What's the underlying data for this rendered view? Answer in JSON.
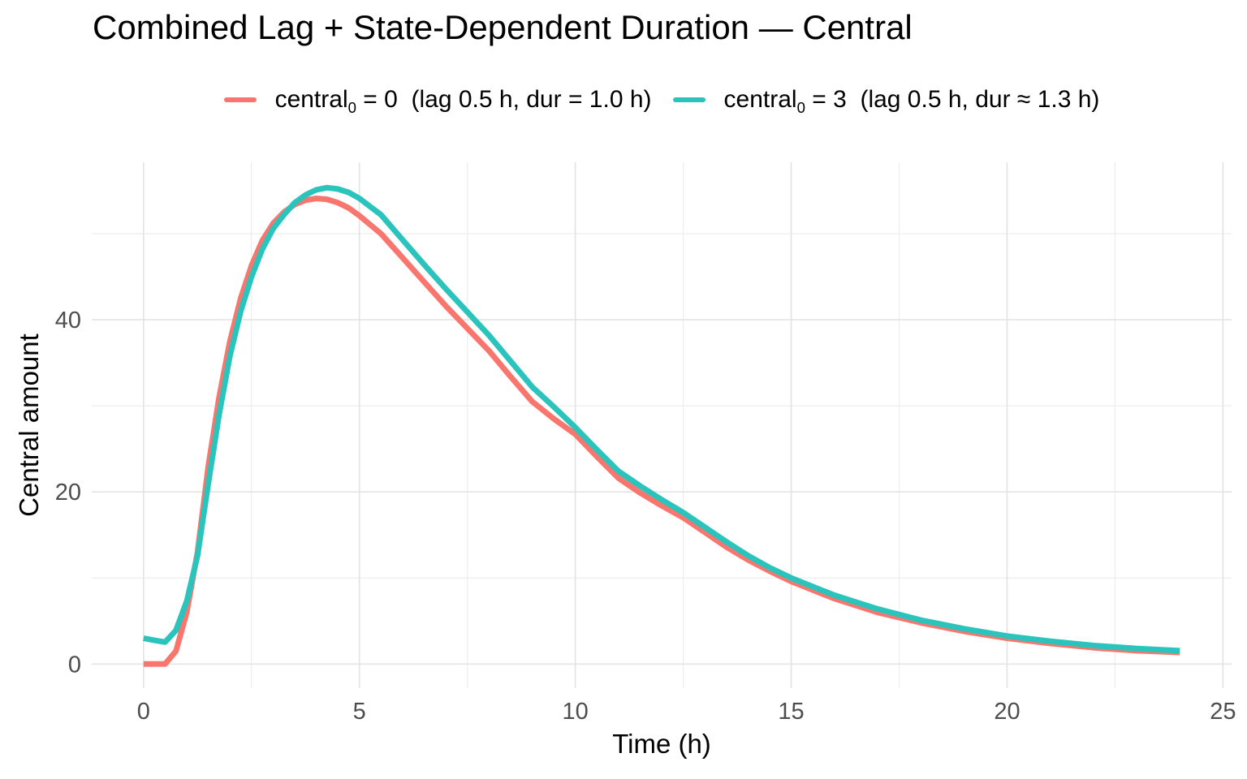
{
  "chart_data": {
    "type": "line",
    "title": "Combined Lag + State-Dependent Duration — Central",
    "xlabel": "Time (h)",
    "ylabel": "Central amount",
    "xlim": [
      -1.2,
      25.2
    ],
    "ylim": [
      -2.8,
      58.3
    ],
    "xticks": [
      0,
      5,
      10,
      15,
      20,
      25
    ],
    "xticks_minor": [
      2.5,
      7.5,
      12.5,
      17.5,
      22.5
    ],
    "yticks": [
      0,
      20,
      40
    ],
    "yticks_minor": [
      10,
      30,
      50
    ],
    "grid": true,
    "legend_position": "top-center",
    "x": [
      0,
      0.25,
      0.5,
      0.75,
      1,
      1.25,
      1.5,
      1.75,
      2,
      2.25,
      2.5,
      2.75,
      3,
      3.25,
      3.5,
      3.75,
      4,
      4.25,
      4.5,
      4.75,
      5,
      5.5,
      6,
      6.5,
      7,
      7.5,
      8,
      8.5,
      9,
      9.5,
      10,
      10.5,
      11,
      11.5,
      12,
      12.5,
      13,
      13.5,
      14,
      14.5,
      15,
      16,
      17,
      18,
      19,
      20,
      21,
      22,
      23,
      24
    ],
    "series": [
      {
        "name": "central0 = 0  (lag 0.5 h, dur = 1.0 h)",
        "label_pre": "central",
        "label_sub": "0",
        "label_post": " = 0  (lag 0.5 h, dur = 1.0 h)",
        "color": "#F8766D",
        "y": [
          0,
          0,
          0,
          1.5,
          6,
          13,
          23,
          31,
          37.5,
          42.5,
          46.3,
          49.2,
          51.2,
          52.5,
          53.4,
          53.9,
          54.1,
          54,
          53.6,
          53,
          52.1,
          50,
          47.2,
          44.4,
          41.6,
          39,
          36.4,
          33.4,
          30.5,
          28.5,
          26.7,
          24.1,
          21.6,
          19.9,
          18.4,
          17,
          15.3,
          13.6,
          12.1,
          10.8,
          9.6,
          7.6,
          6,
          4.8,
          3.8,
          3,
          2.4,
          1.9,
          1.55,
          1.35
        ]
      },
      {
        "name": "central0 = 3  (lag 0.5 h, dur ≈ 1.3 h)",
        "label_pre": "central",
        "label_sub": "0",
        "label_post": " = 3  (lag 0.5 h, dur ≈ 1.3 h)",
        "color": "#2BC4BD",
        "y": [
          3,
          2.75,
          2.55,
          3.9,
          7.3,
          12.6,
          21,
          29,
          35.8,
          41,
          45,
          48.2,
          50.6,
          52.2,
          53.6,
          54.5,
          55.1,
          55.35,
          55.2,
          54.8,
          54.1,
          52.2,
          49.3,
          46.4,
          43.6,
          40.9,
          38.2,
          35.2,
          32.2,
          29.9,
          27.5,
          24.9,
          22.4,
          20.7,
          19.1,
          17.6,
          15.9,
          14.2,
          12.6,
          11.2,
          10,
          8,
          6.4,
          5.1,
          4.1,
          3.25,
          2.65,
          2.15,
          1.8,
          1.55
        ]
      }
    ],
    "theme": {
      "background": "#FFFFFF",
      "grid_major_color": "#E4E4E4",
      "grid_minor_color": "#EDEDED",
      "tick_label_color": "#4D4D4D",
      "text_color": "#000000"
    }
  }
}
